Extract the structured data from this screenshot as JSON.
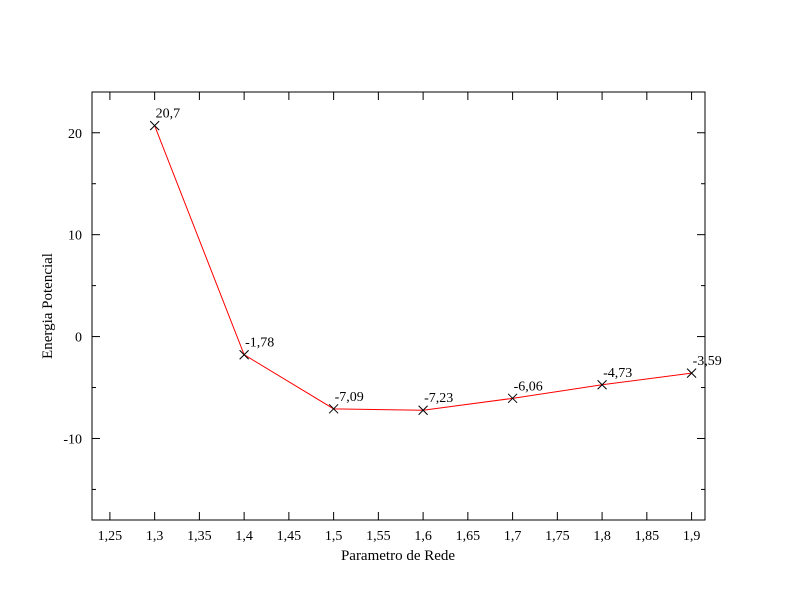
{
  "chart_data": {
    "type": "line",
    "title": "",
    "xlabel": "Parametro de Rede",
    "ylabel": "Energia Potencial",
    "xlim": [
      1.23,
      1.915
    ],
    "ylim": [
      -18,
      24
    ],
    "x_ticks": [
      1.25,
      1.3,
      1.35,
      1.4,
      1.45,
      1.5,
      1.55,
      1.6,
      1.65,
      1.7,
      1.75,
      1.8,
      1.85,
      1.9
    ],
    "x_tick_labels": [
      "1,25",
      "1,3",
      "1,35",
      "1,4",
      "1,45",
      "1,5",
      "1,55",
      "1,6",
      "1,65",
      "1,7",
      "1,75",
      "1,8",
      "1,85",
      "1,9"
    ],
    "y_ticks": [
      -10,
      0,
      10,
      20
    ],
    "y_tick_labels": [
      "-10",
      "0",
      "10",
      "20"
    ],
    "y_minor_ticks": [
      -15,
      -5,
      5,
      15
    ],
    "grid": false,
    "legend": "none",
    "series": [
      {
        "x": [
          1.3,
          1.4,
          1.5,
          1.6,
          1.7,
          1.8,
          1.9
        ],
        "y": [
          20.7,
          -1.78,
          -7.09,
          -7.23,
          -6.06,
          -4.73,
          -3.59
        ],
        "labels": [
          "20,7",
          "-1,78",
          "-7,09",
          "-7,23",
          "-6,06",
          "-4,73",
          "-3,59"
        ],
        "color": "#ff0000",
        "marker": "x",
        "marker_color": "#000000"
      }
    ]
  }
}
